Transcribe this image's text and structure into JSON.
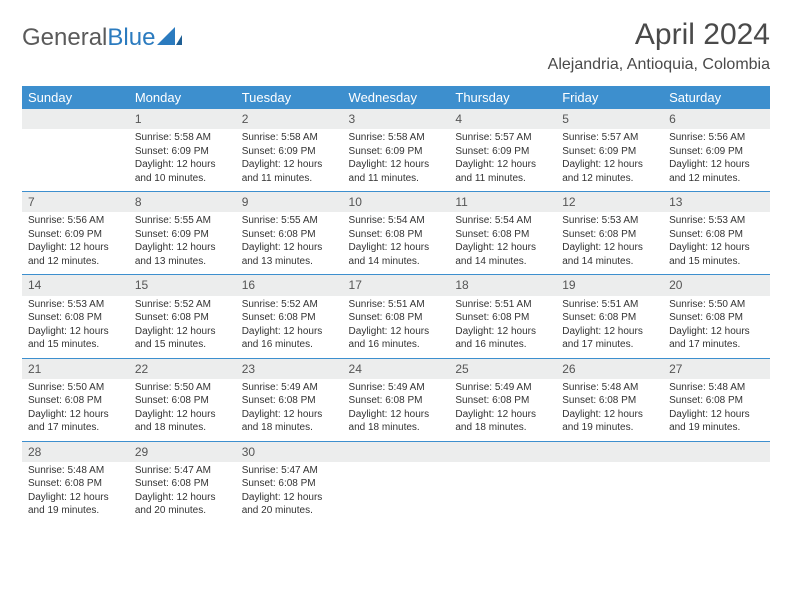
{
  "logo": {
    "word1": "General",
    "word2": "Blue"
  },
  "title": "April 2024",
  "location": "Alejandria, Antioquia, Colombia",
  "colors": {
    "header_bg": "#3d8fce",
    "header_text": "#ffffff",
    "daynum_bg": "#eceded",
    "text": "#333333",
    "rule": "#3d8fce"
  },
  "day_headers": [
    "Sunday",
    "Monday",
    "Tuesday",
    "Wednesday",
    "Thursday",
    "Friday",
    "Saturday"
  ],
  "weeks": [
    [
      {
        "num": "",
        "lines": []
      },
      {
        "num": "1",
        "lines": [
          "Sunrise: 5:58 AM",
          "Sunset: 6:09 PM",
          "Daylight: 12 hours and 10 minutes."
        ]
      },
      {
        "num": "2",
        "lines": [
          "Sunrise: 5:58 AM",
          "Sunset: 6:09 PM",
          "Daylight: 12 hours and 11 minutes."
        ]
      },
      {
        "num": "3",
        "lines": [
          "Sunrise: 5:58 AM",
          "Sunset: 6:09 PM",
          "Daylight: 12 hours and 11 minutes."
        ]
      },
      {
        "num": "4",
        "lines": [
          "Sunrise: 5:57 AM",
          "Sunset: 6:09 PM",
          "Daylight: 12 hours and 11 minutes."
        ]
      },
      {
        "num": "5",
        "lines": [
          "Sunrise: 5:57 AM",
          "Sunset: 6:09 PM",
          "Daylight: 12 hours and 12 minutes."
        ]
      },
      {
        "num": "6",
        "lines": [
          "Sunrise: 5:56 AM",
          "Sunset: 6:09 PM",
          "Daylight: 12 hours and 12 minutes."
        ]
      }
    ],
    [
      {
        "num": "7",
        "lines": [
          "Sunrise: 5:56 AM",
          "Sunset: 6:09 PM",
          "Daylight: 12 hours and 12 minutes."
        ]
      },
      {
        "num": "8",
        "lines": [
          "Sunrise: 5:55 AM",
          "Sunset: 6:09 PM",
          "Daylight: 12 hours and 13 minutes."
        ]
      },
      {
        "num": "9",
        "lines": [
          "Sunrise: 5:55 AM",
          "Sunset: 6:08 PM",
          "Daylight: 12 hours and 13 minutes."
        ]
      },
      {
        "num": "10",
        "lines": [
          "Sunrise: 5:54 AM",
          "Sunset: 6:08 PM",
          "Daylight: 12 hours and 14 minutes."
        ]
      },
      {
        "num": "11",
        "lines": [
          "Sunrise: 5:54 AM",
          "Sunset: 6:08 PM",
          "Daylight: 12 hours and 14 minutes."
        ]
      },
      {
        "num": "12",
        "lines": [
          "Sunrise: 5:53 AM",
          "Sunset: 6:08 PM",
          "Daylight: 12 hours and 14 minutes."
        ]
      },
      {
        "num": "13",
        "lines": [
          "Sunrise: 5:53 AM",
          "Sunset: 6:08 PM",
          "Daylight: 12 hours and 15 minutes."
        ]
      }
    ],
    [
      {
        "num": "14",
        "lines": [
          "Sunrise: 5:53 AM",
          "Sunset: 6:08 PM",
          "Daylight: 12 hours and 15 minutes."
        ]
      },
      {
        "num": "15",
        "lines": [
          "Sunrise: 5:52 AM",
          "Sunset: 6:08 PM",
          "Daylight: 12 hours and 15 minutes."
        ]
      },
      {
        "num": "16",
        "lines": [
          "Sunrise: 5:52 AM",
          "Sunset: 6:08 PM",
          "Daylight: 12 hours and 16 minutes."
        ]
      },
      {
        "num": "17",
        "lines": [
          "Sunrise: 5:51 AM",
          "Sunset: 6:08 PM",
          "Daylight: 12 hours and 16 minutes."
        ]
      },
      {
        "num": "18",
        "lines": [
          "Sunrise: 5:51 AM",
          "Sunset: 6:08 PM",
          "Daylight: 12 hours and 16 minutes."
        ]
      },
      {
        "num": "19",
        "lines": [
          "Sunrise: 5:51 AM",
          "Sunset: 6:08 PM",
          "Daylight: 12 hours and 17 minutes."
        ]
      },
      {
        "num": "20",
        "lines": [
          "Sunrise: 5:50 AM",
          "Sunset: 6:08 PM",
          "Daylight: 12 hours and 17 minutes."
        ]
      }
    ],
    [
      {
        "num": "21",
        "lines": [
          "Sunrise: 5:50 AM",
          "Sunset: 6:08 PM",
          "Daylight: 12 hours and 17 minutes."
        ]
      },
      {
        "num": "22",
        "lines": [
          "Sunrise: 5:50 AM",
          "Sunset: 6:08 PM",
          "Daylight: 12 hours and 18 minutes."
        ]
      },
      {
        "num": "23",
        "lines": [
          "Sunrise: 5:49 AM",
          "Sunset: 6:08 PM",
          "Daylight: 12 hours and 18 minutes."
        ]
      },
      {
        "num": "24",
        "lines": [
          "Sunrise: 5:49 AM",
          "Sunset: 6:08 PM",
          "Daylight: 12 hours and 18 minutes."
        ]
      },
      {
        "num": "25",
        "lines": [
          "Sunrise: 5:49 AM",
          "Sunset: 6:08 PM",
          "Daylight: 12 hours and 18 minutes."
        ]
      },
      {
        "num": "26",
        "lines": [
          "Sunrise: 5:48 AM",
          "Sunset: 6:08 PM",
          "Daylight: 12 hours and 19 minutes."
        ]
      },
      {
        "num": "27",
        "lines": [
          "Sunrise: 5:48 AM",
          "Sunset: 6:08 PM",
          "Daylight: 12 hours and 19 minutes."
        ]
      }
    ],
    [
      {
        "num": "28",
        "lines": [
          "Sunrise: 5:48 AM",
          "Sunset: 6:08 PM",
          "Daylight: 12 hours and 19 minutes."
        ]
      },
      {
        "num": "29",
        "lines": [
          "Sunrise: 5:47 AM",
          "Sunset: 6:08 PM",
          "Daylight: 12 hours and 20 minutes."
        ]
      },
      {
        "num": "30",
        "lines": [
          "Sunrise: 5:47 AM",
          "Sunset: 6:08 PM",
          "Daylight: 12 hours and 20 minutes."
        ]
      },
      {
        "num": "",
        "lines": []
      },
      {
        "num": "",
        "lines": []
      },
      {
        "num": "",
        "lines": []
      },
      {
        "num": "",
        "lines": []
      }
    ]
  ]
}
